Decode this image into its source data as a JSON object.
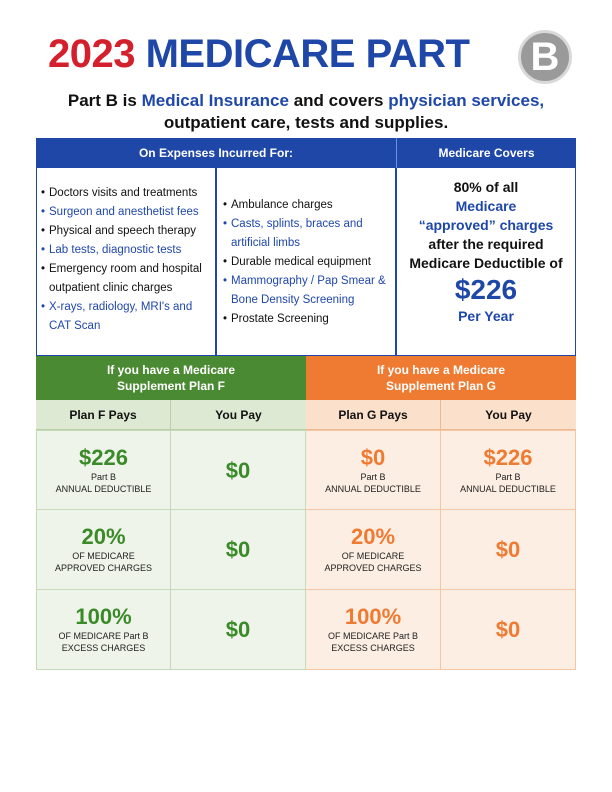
{
  "title": {
    "year": "2023",
    "main": "MEDICARE PART",
    "letter": "B"
  },
  "subtitle": {
    "p1": "Part B is ",
    "h1": "Medical Insurance",
    "p2": " and covers ",
    "h2": "physician services,",
    "line2": "outpatient care, tests and supplies."
  },
  "header": {
    "expenses": "On Expenses Incurred For:",
    "covers": "Medicare Covers"
  },
  "expenses_col1": [
    {
      "text": "Doctors visits and treatments",
      "highlight": false
    },
    {
      "text": "Surgeon and anesthetist fees",
      "highlight": true
    },
    {
      "text": "Physical and speech therapy",
      "highlight": false
    },
    {
      "text": "Lab tests, diagnostic tests",
      "highlight": true
    },
    {
      "text": "Emergency room and hospital outpatient clinic charges",
      "highlight": false
    },
    {
      "text": "X-rays, radiology, MRI's and CAT Scan",
      "highlight": true
    }
  ],
  "expenses_col2": [
    {
      "text": "Ambulance charges",
      "highlight": false
    },
    {
      "text": "Casts, splints, braces and artificial limbs",
      "highlight": true
    },
    {
      "text": "Durable medical equipment",
      "highlight": false
    },
    {
      "text": "Mammography / Pap Smear & Bone Density Screening",
      "highlight": true
    },
    {
      "text": "Prostate Screening",
      "highlight": false
    }
  ],
  "covers": {
    "l1": "80% of all",
    "l2": "Medicare",
    "l3": "“approved” charges",
    "l4": "after the required",
    "l5": "Medicare Deductible of",
    "amount": "$226",
    "period": "Per Year"
  },
  "plan_f": {
    "header_l1": "If you have a Medicare",
    "header_l2": "Supplement Plan F",
    "col_plan": "Plan F Pays",
    "col_you": "You Pay",
    "color": "#3b8a2a",
    "rows": [
      {
        "plan_value": "$226",
        "plan_l1": "Part B",
        "plan_l2": "ANNUAL DEDUCTIBLE",
        "you": "$0"
      },
      {
        "plan_value": "20%",
        "plan_l1": "OF MEDICARE",
        "plan_l2": "APPROVED CHARGES",
        "you": "$0"
      },
      {
        "plan_value": "100%",
        "plan_l1": "OF MEDICARE Part B",
        "plan_l2": "EXCESS  CHARGES",
        "you": "$0"
      }
    ]
  },
  "plan_g": {
    "header_l1": "If you have a Medicare",
    "header_l2": "Supplement Plan G",
    "col_plan": "Plan G Pays",
    "col_you": "You Pay",
    "color": "#ef7a32",
    "rows": [
      {
        "plan_value": "$0",
        "plan_l1": "Part B",
        "plan_l2": "ANNUAL DEDUCTIBLE",
        "you": "$226",
        "you_l1": "Part B",
        "you_l2": "ANNUAL DEDUCTIBLE"
      },
      {
        "plan_value": "20%",
        "plan_l1": "OF MEDICARE",
        "plan_l2": "APPROVED CHARGES",
        "you": "$0"
      },
      {
        "plan_value": "100%",
        "plan_l1": "OF MEDICARE Part B",
        "plan_l2": "EXCESS  CHARGES",
        "you": "$0"
      }
    ]
  }
}
